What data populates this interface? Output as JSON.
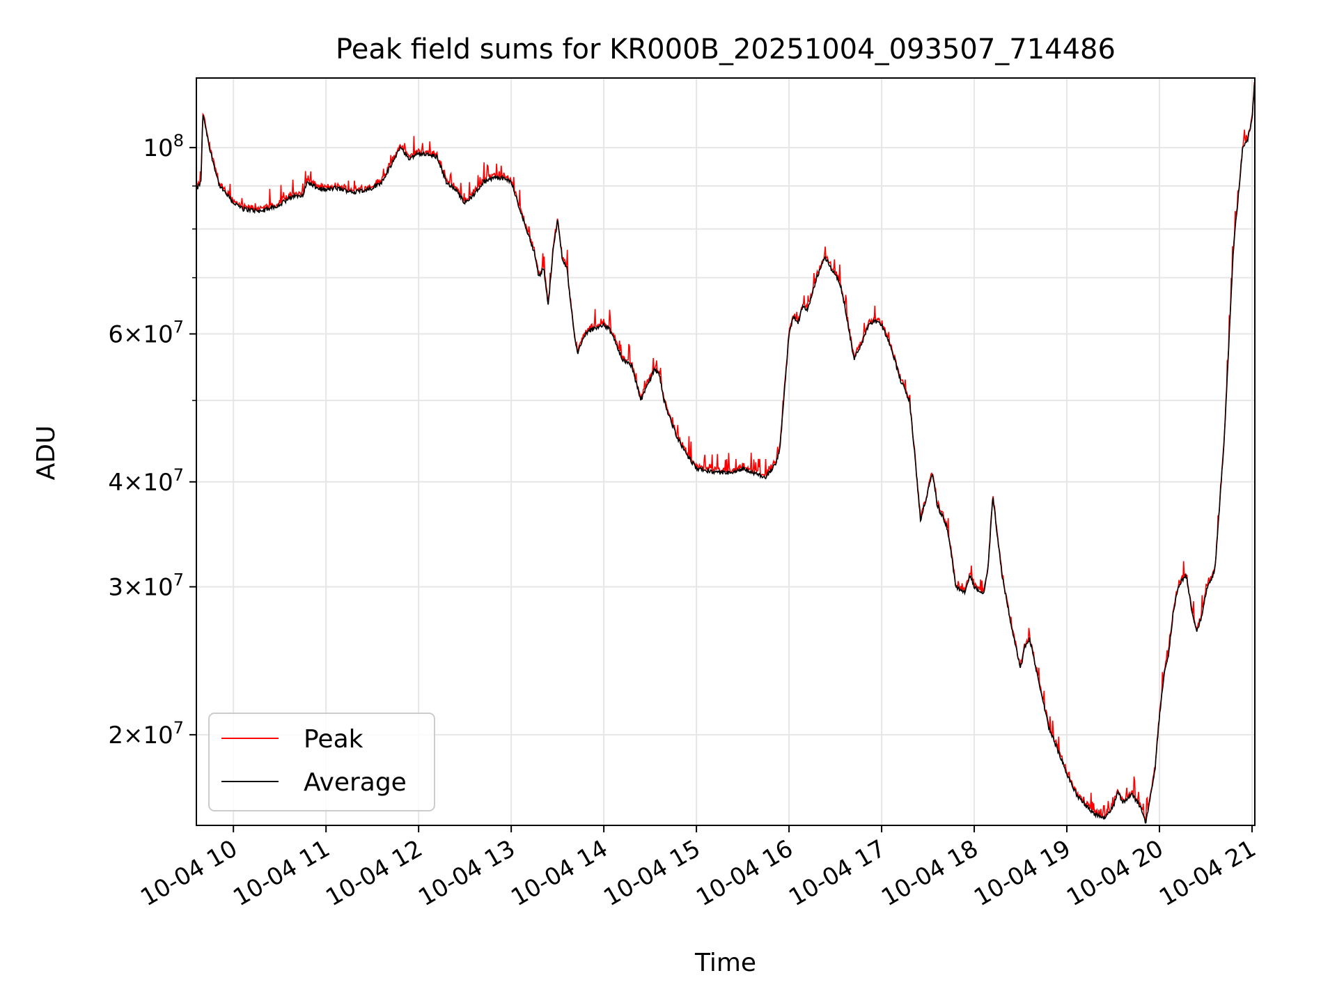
{
  "chart_data": {
    "type": "line",
    "title": "Peak field sums for KR000B_20251004_093507_714486",
    "xlabel": "Time",
    "ylabel": "ADU",
    "x_unit": "hours since 2025-10-04 00:00",
    "xlim": [
      9.6,
      21.03
    ],
    "ylim": [
      15600000,
      121000000
    ],
    "yscale": "log",
    "grid": true,
    "legend_location": "lower left",
    "x_tick_labels": [
      "10-04 10",
      "10-04 11",
      "10-04 12",
      "10-04 13",
      "10-04 14",
      "10-04 15",
      "10-04 16",
      "10-04 17",
      "10-04 18",
      "10-04 19",
      "10-04 20",
      "10-04 21"
    ],
    "x_tick_values": [
      10,
      11,
      12,
      13,
      14,
      15,
      16,
      17,
      18,
      19,
      20,
      21
    ],
    "y_ticks": [
      {
        "value": 20000000,
        "mantissa": "2",
        "base": "10",
        "exp": "7"
      },
      {
        "value": 30000000,
        "mantissa": "3",
        "base": "10",
        "exp": "7"
      },
      {
        "value": 40000000,
        "mantissa": "4",
        "base": "10",
        "exp": "7"
      },
      {
        "value": 60000000,
        "mantissa": "6",
        "base": "10",
        "exp": "7"
      },
      {
        "value": 100000000,
        "mantissa": "",
        "base": "10",
        "exp": "8"
      }
    ],
    "y_minor_ticks": [
      50000000,
      70000000,
      80000000,
      90000000
    ],
    "series": [
      {
        "name": "Peak",
        "color": "#ff0000"
      },
      {
        "name": "Average",
        "color": "#000000"
      }
    ],
    "x": [
      9.6,
      9.65,
      9.67,
      9.75,
      9.85,
      10.0,
      10.1,
      10.3,
      10.5,
      10.6,
      10.75,
      10.8,
      10.9,
      11.0,
      11.1,
      11.2,
      11.3,
      11.4,
      11.5,
      11.6,
      11.7,
      11.8,
      11.9,
      12.0,
      12.1,
      12.2,
      12.3,
      12.4,
      12.5,
      12.6,
      12.7,
      12.8,
      12.9,
      13.0,
      13.1,
      13.2,
      13.25,
      13.3,
      13.35,
      13.4,
      13.45,
      13.5,
      13.55,
      13.6,
      13.65,
      13.7,
      13.72,
      13.8,
      13.9,
      14.0,
      14.05,
      14.1,
      14.2,
      14.3,
      14.4,
      14.5,
      14.55,
      14.6,
      14.65,
      14.7,
      14.8,
      14.9,
      15.0,
      15.2,
      15.4,
      15.5,
      15.6,
      15.75,
      15.85,
      15.9,
      16.0,
      16.05,
      16.1,
      16.15,
      16.2,
      16.3,
      16.38,
      16.45,
      16.55,
      16.6,
      16.7,
      16.8,
      16.87,
      16.95,
      17.0,
      17.1,
      17.2,
      17.3,
      17.35,
      17.42,
      17.5,
      17.55,
      17.6,
      17.7,
      17.75,
      17.8,
      17.9,
      17.95,
      18.0,
      18.1,
      18.15,
      18.2,
      18.3,
      18.4,
      18.5,
      18.55,
      18.6,
      18.7,
      18.8,
      18.9,
      19.0,
      19.1,
      19.2,
      19.3,
      19.4,
      19.5,
      19.55,
      19.6,
      19.7,
      19.8,
      19.85,
      19.9,
      19.95,
      20.0,
      20.05,
      20.1,
      20.15,
      20.2,
      20.28,
      20.3,
      20.35,
      20.4,
      20.45,
      20.5,
      20.6,
      20.7,
      20.8,
      20.9,
      20.95,
      21.0,
      21.03
    ],
    "avg": [
      89000000,
      91000000,
      110000000,
      99000000,
      90000000,
      86000000,
      84500000,
      84000000,
      85500000,
      87000000,
      88000000,
      91000000,
      89500000,
      89000000,
      89500000,
      89000000,
      88500000,
      89000000,
      89500000,
      91000000,
      95000000,
      100000000,
      97000000,
      98500000,
      98000000,
      97500000,
      91000000,
      89000000,
      86000000,
      88000000,
      91000000,
      92000000,
      92000000,
      91000000,
      84000000,
      78000000,
      75000000,
      70000000,
      72000000,
      65000000,
      75000000,
      82000000,
      74000000,
      72000000,
      64000000,
      58000000,
      57000000,
      60000000,
      61000000,
      61500000,
      61000000,
      59500000,
      56000000,
      55000000,
      50000000,
      53000000,
      54500000,
      53500000,
      50000000,
      48000000,
      45000000,
      43000000,
      41500000,
      41000000,
      41000000,
      41500000,
      41000000,
      40500000,
      42000000,
      43500000,
      60000000,
      63000000,
      62000000,
      65000000,
      64000000,
      70000000,
      74000000,
      72000000,
      69000000,
      65000000,
      56000000,
      59000000,
      62000000,
      62000000,
      61500000,
      58000000,
      53000000,
      50000000,
      44000000,
      36000000,
      39000000,
      41000000,
      37500000,
      35500000,
      33000000,
      30000000,
      29500000,
      31000000,
      30000000,
      29500000,
      31500000,
      38500000,
      31000000,
      27000000,
      24000000,
      25500000,
      26000000,
      23000000,
      20500000,
      19200000,
      18000000,
      17000000,
      16500000,
      16100000,
      15900000,
      16400000,
      17100000,
      16600000,
      17000000,
      16400000,
      15700000,
      16800000,
      18100000,
      21000000,
      23500000,
      25000000,
      28000000,
      30000000,
      31000000,
      30500000,
      28000000,
      26500000,
      27500000,
      29500000,
      31500000,
      45000000,
      76000000,
      100000000,
      102000000,
      108000000,
      121000000
    ]
  },
  "legend": {
    "peak_label": "Peak",
    "average_label": "Average"
  }
}
